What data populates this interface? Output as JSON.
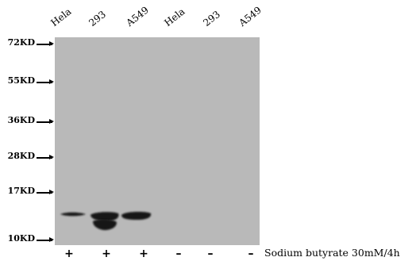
{
  "lanes": [
    "Hela",
    "293",
    "A549",
    "Hela",
    "293",
    "A549"
  ],
  "markers": [
    "72KD",
    "55KD",
    "36KD",
    "28KD",
    "17KD",
    "10KD"
  ],
  "treatment": {
    "signs": [
      "+",
      "+",
      "+",
      "–",
      "–",
      "–"
    ],
    "label": "Sodium butyrate 30mM/4h"
  },
  "colors": {
    "membrane": "#b9b9b9",
    "band": "#121212"
  }
}
